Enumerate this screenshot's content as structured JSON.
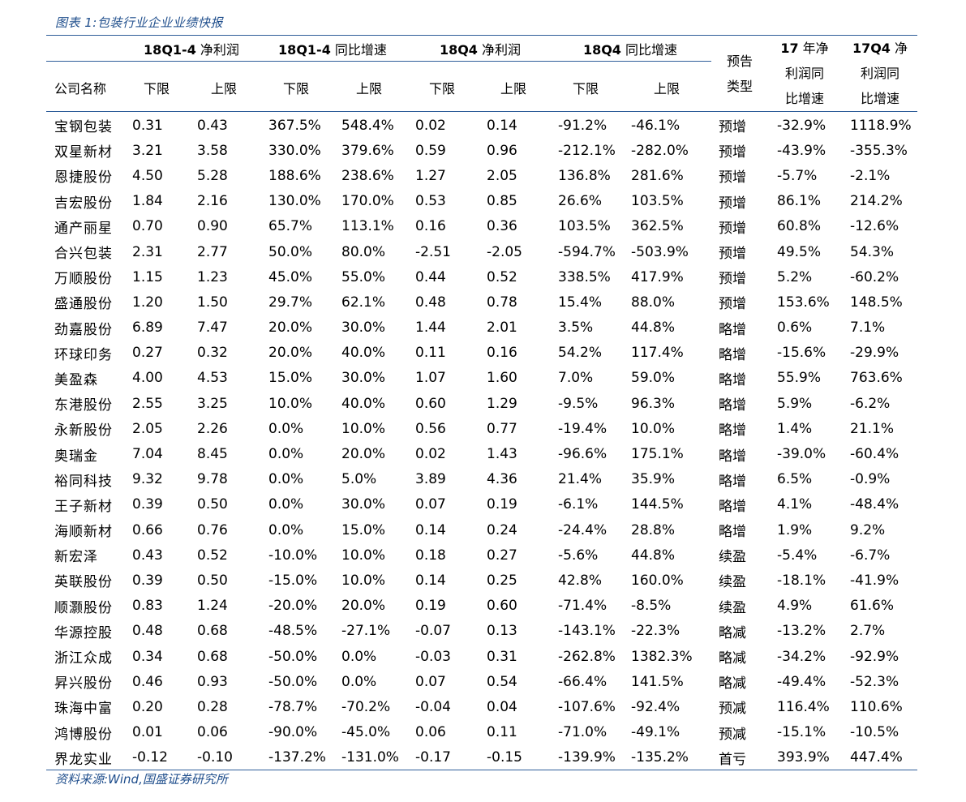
{
  "caption": "图表 1:包装行业企业业绩快报",
  "source": "资料来源:Wind,国盛证券研究所",
  "header": {
    "groups": [
      {
        "code": "18Q1-4",
        "label": "净利润"
      },
      {
        "code": "18Q1-4",
        "label": "同比增速"
      },
      {
        "code": "18Q4",
        "label": "净利润"
      },
      {
        "code": "18Q4",
        "label": "同比增速"
      }
    ],
    "company": "公司名称",
    "lower": "下限",
    "upper": "上限",
    "forecast": [
      "预告",
      "类型"
    ],
    "fy17": {
      "code": "17",
      "lines": [
        "年净",
        "利润同",
        "比增速"
      ]
    },
    "q417": {
      "code": "17Q4",
      "lines": [
        "净",
        "利润同",
        "比增速"
      ]
    }
  },
  "rows": [
    [
      "宝钢包装",
      "0.31",
      "0.43",
      "367.5%",
      "548.4%",
      "0.02",
      "0.14",
      "-91.2%",
      "-46.1%",
      "预增",
      "-32.9%",
      "1118.9%"
    ],
    [
      "双星新材",
      "3.21",
      "3.58",
      "330.0%",
      "379.6%",
      "0.59",
      "0.96",
      "-212.1%",
      "-282.0%",
      "预增",
      "-43.9%",
      "-355.3%"
    ],
    [
      "恩捷股份",
      "4.50",
      "5.28",
      "188.6%",
      "238.6%",
      "1.27",
      "2.05",
      "136.8%",
      "281.6%",
      "预增",
      "-5.7%",
      "-2.1%"
    ],
    [
      "吉宏股份",
      "1.84",
      "2.16",
      "130.0%",
      "170.0%",
      "0.53",
      "0.85",
      "26.6%",
      "103.5%",
      "预增",
      "86.1%",
      "214.2%"
    ],
    [
      "通产丽星",
      "0.70",
      "0.90",
      "65.7%",
      "113.1%",
      "0.16",
      "0.36",
      "103.5%",
      "362.5%",
      "预增",
      "60.8%",
      "-12.6%"
    ],
    [
      "合兴包装",
      "2.31",
      "2.77",
      "50.0%",
      "80.0%",
      "-2.51",
      "-2.05",
      "-594.7%",
      "-503.9%",
      "预增",
      "49.5%",
      "54.3%"
    ],
    [
      "万顺股份",
      "1.15",
      "1.23",
      "45.0%",
      "55.0%",
      "0.44",
      "0.52",
      "338.5%",
      "417.9%",
      "预增",
      "5.2%",
      "-60.2%"
    ],
    [
      "盛通股份",
      "1.20",
      "1.50",
      "29.7%",
      "62.1%",
      "0.48",
      "0.78",
      "15.4%",
      "88.0%",
      "预增",
      "153.6%",
      "148.5%"
    ],
    [
      "劲嘉股份",
      "6.89",
      "7.47",
      "20.0%",
      "30.0%",
      "1.44",
      "2.01",
      "3.5%",
      "44.8%",
      "略增",
      "0.6%",
      "7.1%"
    ],
    [
      "环球印务",
      "0.27",
      "0.32",
      "20.0%",
      "40.0%",
      "0.11",
      "0.16",
      "54.2%",
      "117.4%",
      "略增",
      "-15.6%",
      "-29.9%"
    ],
    [
      "美盈森",
      "4.00",
      "4.53",
      "15.0%",
      "30.0%",
      "1.07",
      "1.60",
      "7.0%",
      "59.0%",
      "略增",
      "55.9%",
      "763.6%"
    ],
    [
      "东港股份",
      "2.55",
      "3.25",
      "10.0%",
      "40.0%",
      "0.60",
      "1.29",
      "-9.5%",
      "96.3%",
      "略增",
      "5.9%",
      "-6.2%"
    ],
    [
      "永新股份",
      "2.05",
      "2.26",
      "0.0%",
      "10.0%",
      "0.56",
      "0.77",
      "-19.4%",
      "10.0%",
      "略增",
      "1.4%",
      "21.1%"
    ],
    [
      "奥瑞金",
      "7.04",
      "8.45",
      "0.0%",
      "20.0%",
      "0.02",
      "1.43",
      "-96.6%",
      "175.1%",
      "略增",
      "-39.0%",
      "-60.4%"
    ],
    [
      "裕同科技",
      "9.32",
      "9.78",
      "0.0%",
      "5.0%",
      "3.89",
      "4.36",
      "21.4%",
      "35.9%",
      "略增",
      "6.5%",
      "-0.9%"
    ],
    [
      "王子新材",
      "0.39",
      "0.50",
      "0.0%",
      "30.0%",
      "0.07",
      "0.19",
      "-6.1%",
      "144.5%",
      "略增",
      "4.1%",
      "-48.4%"
    ],
    [
      "海顺新材",
      "0.66",
      "0.76",
      "0.0%",
      "15.0%",
      "0.14",
      "0.24",
      "-24.4%",
      "28.8%",
      "略增",
      "1.9%",
      "9.2%"
    ],
    [
      "新宏泽",
      "0.43",
      "0.52",
      "-10.0%",
      "10.0%",
      "0.18",
      "0.27",
      "-5.6%",
      "44.8%",
      "续盈",
      "-5.4%",
      "-6.7%"
    ],
    [
      "英联股份",
      "0.39",
      "0.50",
      "-15.0%",
      "10.0%",
      "0.14",
      "0.25",
      "42.8%",
      "160.0%",
      "续盈",
      "-18.1%",
      "-41.9%"
    ],
    [
      "顺灏股份",
      "0.83",
      "1.24",
      "-20.0%",
      "20.0%",
      "0.19",
      "0.60",
      "-71.4%",
      "-8.5%",
      "续盈",
      "4.9%",
      "61.6%"
    ],
    [
      "华源控股",
      "0.48",
      "0.68",
      "-48.5%",
      "-27.1%",
      "-0.07",
      "0.13",
      "-143.1%",
      "-22.3%",
      "略减",
      "-13.2%",
      "2.7%"
    ],
    [
      "浙江众成",
      "0.34",
      "0.68",
      "-50.0%",
      "0.0%",
      "-0.03",
      "0.31",
      "-262.8%",
      "1382.3%",
      "略减",
      "-34.2%",
      "-92.9%"
    ],
    [
      "昇兴股份",
      "0.46",
      "0.93",
      "-50.0%",
      "0.0%",
      "0.07",
      "0.54",
      "-66.4%",
      "141.5%",
      "略减",
      "-49.4%",
      "-52.3%"
    ],
    [
      "珠海中富",
      "0.20",
      "0.28",
      "-78.7%",
      "-70.2%",
      "-0.04",
      "0.04",
      "-107.6%",
      "-92.4%",
      "预减",
      "116.4%",
      "110.6%"
    ],
    [
      "鸿博股份",
      "0.01",
      "0.06",
      "-90.0%",
      "-45.0%",
      "0.06",
      "0.11",
      "-71.0%",
      "-49.1%",
      "预减",
      "-15.1%",
      "-10.5%"
    ],
    [
      "界龙实业",
      "-0.12",
      "-0.10",
      "-137.2%",
      "-131.0%",
      "-0.17",
      "-0.15",
      "-139.9%",
      "-135.2%",
      "首亏",
      "393.9%",
      "447.4%"
    ]
  ]
}
